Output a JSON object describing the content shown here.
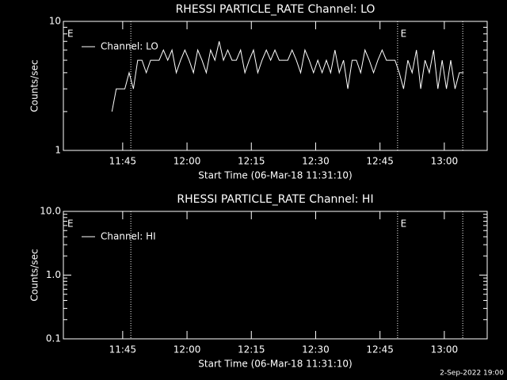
{
  "chart_data": [
    {
      "type": "line",
      "title": "RHESSI PARTICLE_RATE Channel: LO",
      "xlabel": "Start Time (06-Mar-18 11:31:10)",
      "ylabel": "Counts/sec",
      "log_y": true,
      "legend": "upper left",
      "xlim": [
        691.17,
        790
      ],
      "ylim": [
        1,
        10
      ],
      "xticks": [
        {
          "value": 705,
          "label": "11:45"
        },
        {
          "value": 720,
          "label": "12:00"
        },
        {
          "value": 735,
          "label": "12:15"
        },
        {
          "value": 750,
          "label": "12:30"
        },
        {
          "value": 765,
          "label": "12:45"
        },
        {
          "value": 780,
          "label": "13:00"
        }
      ],
      "yticks": [
        1,
        10
      ],
      "vlines": [
        706.9,
        769.1,
        784.3
      ],
      "annotations": [
        {
          "x": 691.9,
          "text": "E"
        },
        {
          "x": 769.6,
          "text": "E"
        }
      ],
      "x": [
        702.5,
        703.5,
        704.5,
        705.5,
        706.5,
        707.5,
        708.5,
        709.5,
        710.5,
        711.5,
        712.5,
        713.5,
        714.5,
        715.5,
        716.5,
        717.5,
        718.5,
        719.5,
        720.5,
        721.5,
        722.5,
        723.5,
        724.5,
        725.5,
        726.5,
        727.5,
        728.5,
        729.5,
        730.5,
        731.5,
        732.5,
        733.5,
        734.5,
        735.5,
        736.5,
        737.5,
        738.5,
        739.5,
        740.5,
        741.5,
        742.5,
        743.5,
        744.5,
        745.5,
        746.5,
        747.5,
        748.5,
        749.5,
        750.5,
        751.5,
        752.5,
        753.5,
        754.5,
        755.5,
        756.5,
        757.5,
        758.5,
        759.5,
        760.5,
        761.5,
        762.5,
        763.5,
        764.5,
        765.5,
        766.5,
        767.5,
        768.5,
        769.5,
        770.5,
        771.5,
        772.5,
        773.5,
        774.5,
        775.5,
        776.5,
        777.5,
        778.5,
        779.5,
        780.5,
        781.5,
        782.5,
        783.5,
        784.5
      ],
      "series": [
        {
          "name": "Channel: LO",
          "color": "#ffffff",
          "values": [
            2,
            3,
            3,
            3,
            4,
            3,
            5,
            5,
            4,
            5,
            5,
            5,
            6,
            5,
            6,
            4,
            5,
            6,
            5,
            4,
            6,
            5,
            4,
            6,
            5,
            7,
            5,
            6,
            5,
            5,
            6,
            4,
            5,
            6,
            4,
            5,
            6,
            5,
            6,
            5,
            5,
            5,
            6,
            5,
            4,
            6,
            5,
            4,
            5,
            4,
            5,
            4,
            6,
            4,
            5,
            3,
            5,
            5,
            4,
            6,
            5,
            4,
            5,
            6,
            5,
            5,
            5,
            4,
            3,
            5,
            4,
            6,
            3,
            5,
            4,
            6,
            3,
            5,
            3,
            5,
            3,
            4,
            4
          ]
        }
      ]
    },
    {
      "type": "line",
      "title": "RHESSI PARTICLE_RATE Channel: HI",
      "xlabel": "Start Time (06-Mar-18 11:31:10)",
      "ylabel": "Counts/sec",
      "log_y": true,
      "legend": "upper left",
      "xlim": [
        691.17,
        790
      ],
      "ylim": [
        0.1,
        10
      ],
      "xticks": [
        {
          "value": 705,
          "label": "11:45"
        },
        {
          "value": 720,
          "label": "12:00"
        },
        {
          "value": 735,
          "label": "12:15"
        },
        {
          "value": 750,
          "label": "12:30"
        },
        {
          "value": 765,
          "label": "12:45"
        },
        {
          "value": 780,
          "label": "13:00"
        }
      ],
      "yticks": [
        0.1,
        {
          "value": 1,
          "label": "1.0"
        },
        {
          "value": 10,
          "label": "10.0"
        }
      ],
      "vlines": [
        706.9,
        769.1,
        784.3
      ],
      "annotations": [
        {
          "x": 691.9,
          "text": "E"
        },
        {
          "x": 769.6,
          "text": "E"
        }
      ],
      "x": [],
      "series": [
        {
          "name": "Channel: HI",
          "color": "#ffffff",
          "values": []
        }
      ]
    }
  ],
  "footer": "2-Sep-2022 19:00"
}
